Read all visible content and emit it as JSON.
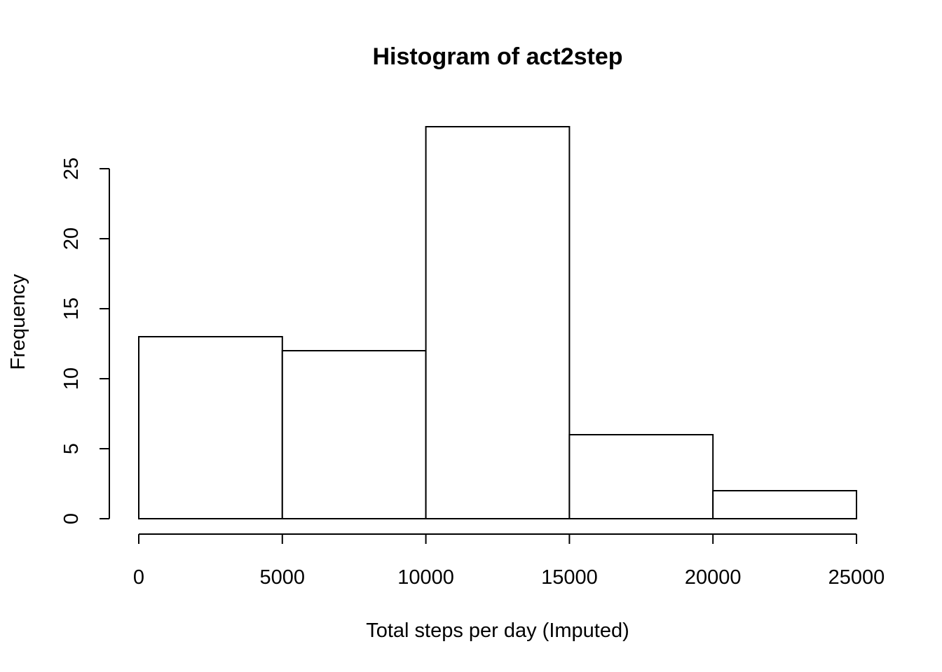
{
  "chart_data": {
    "type": "bar",
    "title": "Histogram of act2step",
    "xlabel": "Total steps per day (Imputed)",
    "ylabel": "Frequency",
    "bins": [
      {
        "start": 0,
        "end": 5000,
        "count": 13
      },
      {
        "start": 5000,
        "end": 10000,
        "count": 12
      },
      {
        "start": 10000,
        "end": 15000,
        "count": 28
      },
      {
        "start": 15000,
        "end": 20000,
        "count": 6
      },
      {
        "start": 20000,
        "end": 25000,
        "count": 2
      }
    ],
    "xticks": [
      0,
      5000,
      10000,
      15000,
      20000,
      25000
    ],
    "yticks": [
      0,
      5,
      10,
      15,
      20,
      25
    ],
    "xlim": [
      0,
      25000
    ],
    "grid": false,
    "legend": "none",
    "bar_fill": "#ffffff",
    "bar_stroke": "#000000"
  }
}
